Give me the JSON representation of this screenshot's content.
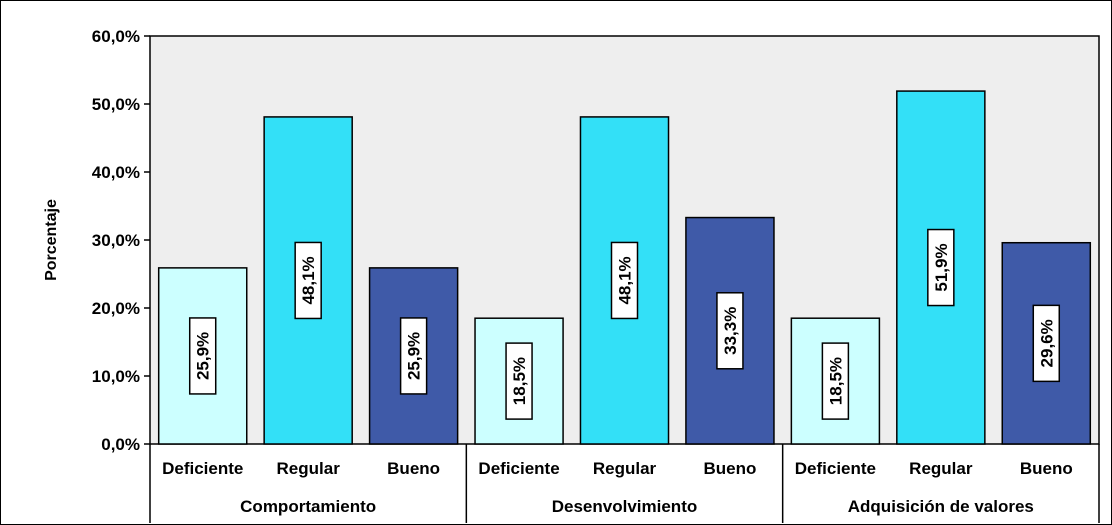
{
  "chart_data": {
    "type": "bar",
    "ylabel": "Porcentaje",
    "ylim": [
      0,
      60
    ],
    "yticks": [
      "0,0%",
      "10,0%",
      "20,0%",
      "30,0%",
      "40,0%",
      "50,0%",
      "60,0%"
    ],
    "groups": [
      {
        "name": "Comportamiento",
        "bars": [
          {
            "category": "Deficiente",
            "value": 25.9,
            "label": "25,9%"
          },
          {
            "category": "Regular",
            "value": 48.1,
            "label": "48,1%"
          },
          {
            "category": "Bueno",
            "value": 25.9,
            "label": "25,9%"
          }
        ]
      },
      {
        "name": "Desenvolvimiento",
        "bars": [
          {
            "category": "Deficiente",
            "value": 18.5,
            "label": "18,5%"
          },
          {
            "category": "Regular",
            "value": 48.1,
            "label": "48,1%"
          },
          {
            "category": "Bueno",
            "value": 33.3,
            "label": "33,3%"
          }
        ]
      },
      {
        "name": "Adquisición de valores",
        "bars": [
          {
            "category": "Deficiente",
            "value": 18.5,
            "label": "18,5%"
          },
          {
            "category": "Regular",
            "value": 51.9,
            "label": "51,9%"
          },
          {
            "category": "Bueno",
            "value": 29.6,
            "label": "29,6%"
          }
        ]
      }
    ],
    "colors": {
      "Deficiente": "#ccffff",
      "Regular": "#33e0f7",
      "Bueno": "#3f5aa8",
      "plot_background": "#eeeeee"
    },
    "grid": false,
    "legend": "none"
  }
}
